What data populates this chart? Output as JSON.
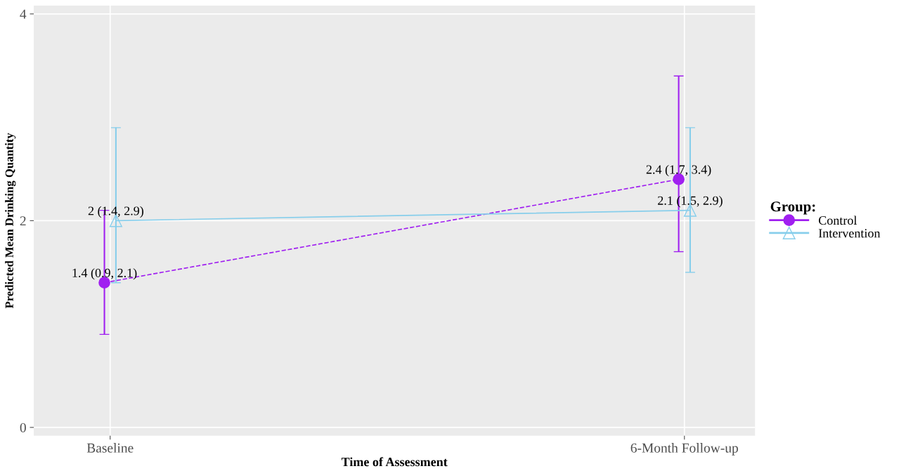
{
  "chart_data": {
    "type": "line",
    "xlabel": "Time of Assessment",
    "ylabel": "Predicted Mean Drinking Quantity",
    "categories": [
      "Baseline",
      "6-Month Follow-up"
    ],
    "series": [
      {
        "name": "Control",
        "color": "#a020f0",
        "values": [
          1.4,
          2.4
        ],
        "errors": [
          [
            0.9,
            2.1
          ],
          [
            1.7,
            3.4
          ]
        ],
        "value_labels": [
          "1.4 (0.9, 2.1)",
          "2.4 (1.7, 3.4)"
        ],
        "marker": "circle",
        "line_style": "dashed"
      },
      {
        "name": "Intervention",
        "color": "#87ceeb",
        "values": [
          2.0,
          2.1
        ],
        "errors": [
          [
            1.4,
            2.9
          ],
          [
            1.5,
            2.9
          ]
        ],
        "value_labels": [
          "2 (1.4, 2.9)",
          "2.1 (1.5, 2.9)"
        ],
        "marker": "triangle",
        "line_style": "solid"
      }
    ],
    "ylim": [
      -0.08,
      4.08
    ],
    "yticks": [
      0,
      2,
      4
    ],
    "grid": true,
    "legend": "right",
    "legend_title": "Group:"
  }
}
